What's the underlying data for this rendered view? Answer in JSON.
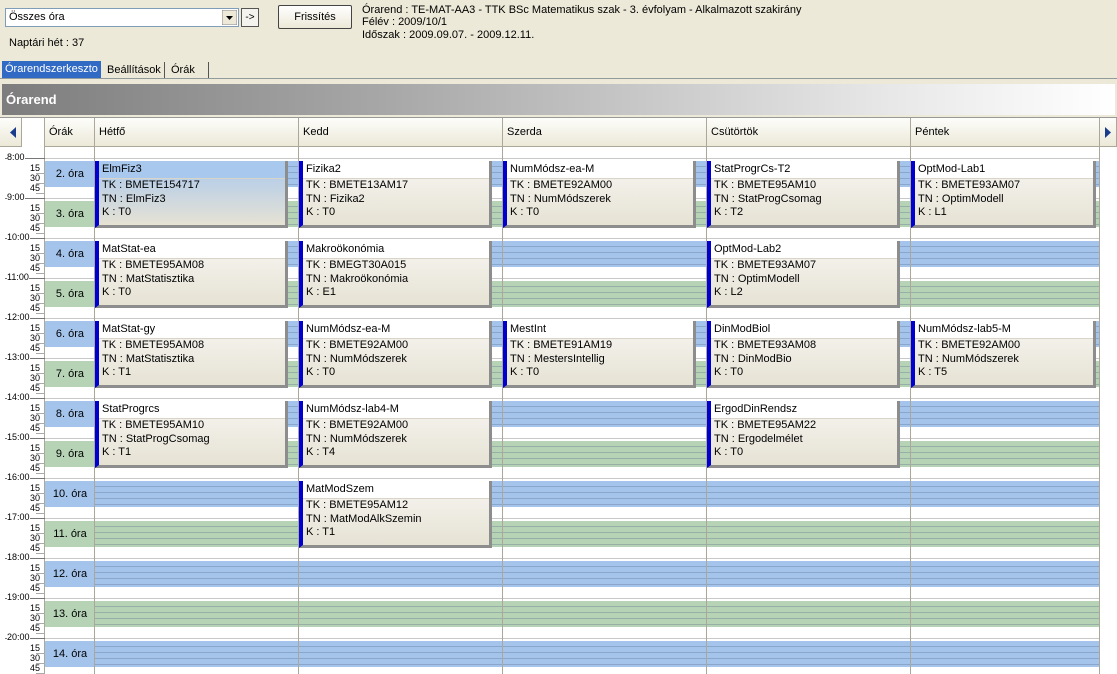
{
  "toolbar": {
    "filter": "Összes óra",
    "go_button": "->",
    "refresh_button": "Frissítés",
    "week": "Naptári hét : 37"
  },
  "info": {
    "timetable": "Órarend : TE-MAT-AA3 - TTK BSc Matematikus szak - 3. évfolyam - Alkalmazott szakirány",
    "semester": "Félév : 2009/10/1",
    "period": "Időszak : 2009.09.07. - 2009.12.11."
  },
  "tabs": [
    "Órarendszerkeszto",
    "Beállítások",
    "Órák"
  ],
  "panel_title": "Órarend",
  "grid": {
    "periods_header": "Órák",
    "hours": [
      "8:00",
      "9:00",
      "10:00",
      "11:00",
      "12:00",
      "13:00",
      "14:00",
      "15:00",
      "16:00",
      "17:00",
      "18:00",
      "19:00",
      "20:00"
    ],
    "minutes": [
      "15",
      "30",
      "45"
    ],
    "periods": [
      "2. óra",
      "3. óra",
      "4. óra",
      "5. óra",
      "6. óra",
      "7. óra",
      "8. óra",
      "9. óra",
      "10. óra",
      "11. óra",
      "12. óra",
      "13. óra",
      "14. óra"
    ],
    "days": [
      {
        "name": "Hétfő",
        "events": [
          {
            "title": "ElmFiz3",
            "lines": [
              "TK : BMETE154717",
              "TN : ElmFiz3",
              "K : T0"
            ]
          },
          {
            "title": "MatStat-ea",
            "lines": [
              "TK : BMETE95AM08",
              "TN : MatStatisztika",
              "K : T0"
            ]
          },
          {
            "title": "MatStat-gy",
            "lines": [
              "TK : BMETE95AM08",
              "TN : MatStatisztika",
              "K : T1"
            ]
          },
          {
            "title": "StatProgrcs",
            "lines": [
              "TK : BMETE95AM10",
              "TN : StatProgCsomag",
              "K : T1"
            ]
          },
          null,
          null,
          null
        ]
      },
      {
        "name": "Kedd",
        "events": [
          {
            "title": "Fizika2",
            "lines": [
              "TK : BMETE13AM17",
              "TN : Fizika2",
              "K : T0"
            ]
          },
          {
            "title": "Makroökonómia",
            "lines": [
              "TK : BMEGT30A015",
              "TN : Makroökonómia",
              "K : E1"
            ]
          },
          {
            "title": "NumMódsz-ea-M",
            "lines": [
              "TK : BMETE92AM00",
              "TN : NumMódszerek",
              "K : T0"
            ]
          },
          {
            "title": "NumMódsz-lab4-M",
            "lines": [
              "TK : BMETE92AM00",
              "TN : NumMódszerek",
              "K : T4"
            ]
          },
          {
            "title": "MatModSzem",
            "lines": [
              "TK : BMETE95AM12",
              "TN : MatModAlkSzemin",
              "K : T1"
            ]
          },
          null,
          null
        ]
      },
      {
        "name": "Szerda",
        "events": [
          {
            "title": "NumMódsz-ea-M",
            "lines": [
              "TK : BMETE92AM00",
              "TN : NumMódszerek",
              "K : T0"
            ]
          },
          null,
          {
            "title": "MestInt",
            "lines": [
              "TK : BMETE91AM19",
              "TN : MestersIntellig",
              "K : T0"
            ]
          },
          null,
          null,
          null,
          null
        ]
      },
      {
        "name": "Csütörtök",
        "events": [
          {
            "title": "StatProgrCs-T2",
            "lines": [
              "TK : BMETE95AM10",
              "TN : StatProgCsomag",
              "K : T2"
            ]
          },
          {
            "title": "OptMod-Lab2",
            "lines": [
              "TK : BMETE93AM07",
              "TN : OptimModell",
              "K : L2"
            ]
          },
          {
            "title": "DinModBiol",
            "lines": [
              "TK : BMETE93AM08",
              "TN : DinModBio",
              "K : T0"
            ]
          },
          {
            "title": "ErgodDinRendsz",
            "lines": [
              "TK : BMETE95AM22",
              "TN : Ergodelmélet",
              "K : T0"
            ]
          },
          null,
          null,
          null
        ]
      },
      {
        "name": "Péntek",
        "events": [
          {
            "title": "OptMod-Lab1",
            "lines": [
              "TK : BMETE93AM07",
              "TN : OptimModell",
              "K : L1"
            ]
          },
          null,
          {
            "title": "NumMódsz-lab5-M",
            "lines": [
              "TK : BMETE92AM00",
              "TN : NumMódszerek",
              "K : T5"
            ]
          },
          null,
          null,
          null,
          null
        ]
      }
    ]
  }
}
